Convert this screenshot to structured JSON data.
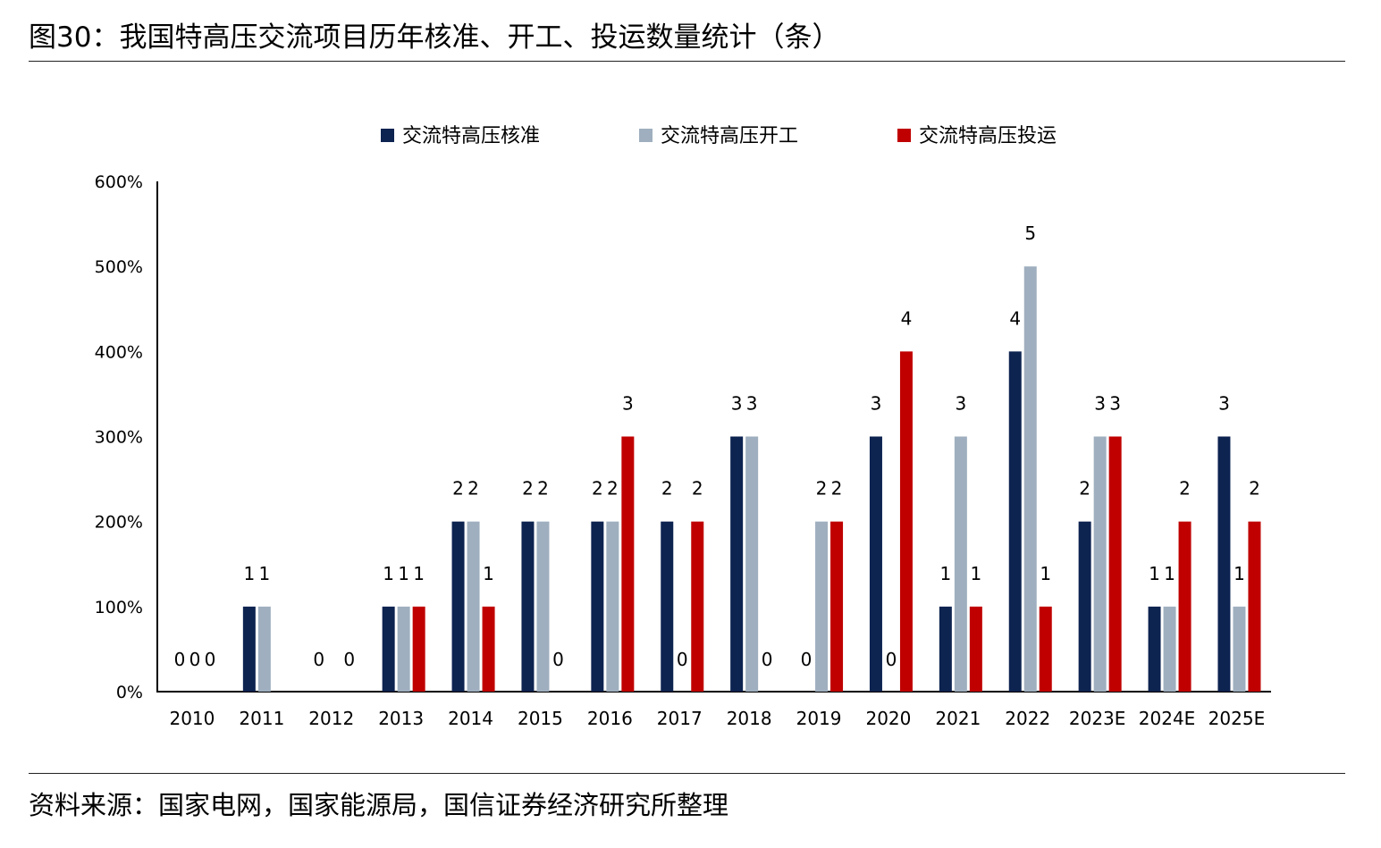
{
  "title": "图30：我国特高压交流项目历年核准、开工、投运数量统计（条）",
  "source": "资料来源：国家电网，国家能源局，国信证券经济研究所整理",
  "colors": {
    "approved": "#0d2350",
    "started": "#9fafbf",
    "commissioned": "#c00000"
  },
  "chart_data": {
    "type": "bar",
    "title": "",
    "xlabel": "",
    "ylabel": "",
    "ylim": [
      0,
      6
    ],
    "yticks": [
      "0%",
      "100%",
      "200%",
      "300%",
      "400%",
      "500%",
      "600%"
    ],
    "legend_position": "top",
    "categories": [
      "2010",
      "2011",
      "2012",
      "2013",
      "2014",
      "2015",
      "2016",
      "2017",
      "2018",
      "2019",
      "2020",
      "2021",
      "2022",
      "2023E",
      "2024E",
      "2025E"
    ],
    "series": [
      {
        "name": "交流特高压核准",
        "key": "approved",
        "values": [
          0,
          1,
          0,
          1,
          2,
          2,
          2,
          2,
          3,
          null,
          3,
          1,
          4,
          2,
          1,
          3
        ]
      },
      {
        "name": "交流特高压开工",
        "key": "started",
        "values": [
          0,
          1,
          null,
          1,
          2,
          2,
          2,
          null,
          3,
          2,
          null,
          3,
          5,
          3,
          1,
          1
        ]
      },
      {
        "name": "交流特高压投运",
        "key": "commissioned",
        "values": [
          0,
          0,
          0,
          1,
          1,
          0,
          3,
          2,
          0,
          2,
          4,
          1,
          1,
          3,
          2,
          2
        ]
      }
    ],
    "data_labels": [
      {
        "category": "2010",
        "series": 0,
        "text": "0"
      },
      {
        "category": "2010",
        "series": 1,
        "text": "0"
      },
      {
        "category": "2010",
        "series": 2,
        "text": "0"
      },
      {
        "category": "2012",
        "series": 0,
        "text": "0"
      },
      {
        "category": "2012",
        "series": 2,
        "text": "0"
      },
      {
        "category": "2015",
        "series": 2,
        "text": "0"
      },
      {
        "category": "2017",
        "series": 1,
        "text": "0"
      },
      {
        "category": "2018",
        "series": 2,
        "text": "0"
      },
      {
        "category": "2019",
        "series": 0,
        "text": "0"
      },
      {
        "category": "2020",
        "series": 1,
        "text": "0"
      }
    ]
  }
}
